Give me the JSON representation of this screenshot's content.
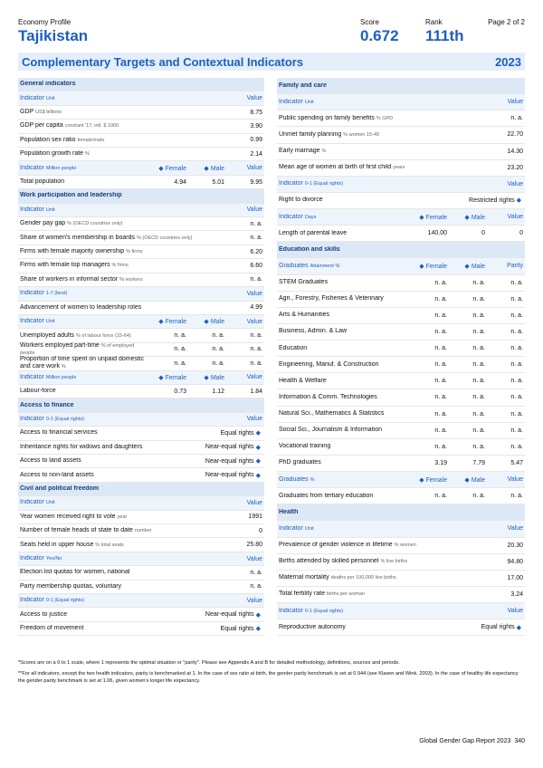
{
  "header": {
    "kind": "Economy Profile",
    "economy": "Tajikistan",
    "score_label": "Score",
    "score": "0.672",
    "rank_label": "Rank",
    "rank": "111th",
    "page": "Page 2 of 2"
  },
  "title": "Complementary Targets and Contextual Indicators",
  "year": "2023",
  "left": [
    {
      "section": "General indicators"
    },
    {
      "head": [
        "Indicator",
        "Unit",
        "Value"
      ]
    },
    {
      "label": "GDP",
      "unit": "US$ billions",
      "values": [
        "8.75"
      ]
    },
    {
      "label": "GDP per capita",
      "unit": "constant '17, intl. $ 1000",
      "values": [
        "3.90"
      ]
    },
    {
      "label": "Population sex ratio",
      "unit": "female/male",
      "values": [
        "0.99"
      ]
    },
    {
      "label": "Population growth rate",
      "unit": "%",
      "values": [
        "2.14"
      ]
    },
    {
      "head": [
        "Indicator",
        "Million people",
        "Female",
        "Male",
        "Value"
      ]
    },
    {
      "label": "Total population",
      "values": [
        "4.94",
        "5.01",
        "9.95"
      ]
    },
    {
      "section": "Work participation and leadership"
    },
    {
      "head": [
        "Indicator",
        "Unit",
        "Value"
      ]
    },
    {
      "label": "Gender pay gap",
      "unit": "% (OECD countries only)",
      "values": [
        "n. a."
      ]
    },
    {
      "label": "Share of women's membership in boards",
      "unit": "% (OECD countries only)",
      "values": [
        "n. a."
      ]
    },
    {
      "label": "Firms with female majority ownership",
      "unit": "% firms",
      "values": [
        "6.20"
      ]
    },
    {
      "label": "Firms with female top managers",
      "unit": "% firms",
      "values": [
        "6.60"
      ]
    },
    {
      "label": "Share of workers in informal sector",
      "unit": "% workers",
      "values": [
        "n. a."
      ]
    },
    {
      "head": [
        "Indicator",
        "1-7 (best)",
        "Value"
      ]
    },
    {
      "label": "Advancement of women to leadership roles",
      "values": [
        "4.99"
      ]
    },
    {
      "head": [
        "Indicator",
        "Unit",
        "Female",
        "Male",
        "Value"
      ]
    },
    {
      "label": "Unemployed adults",
      "unit": "% of labour force (15-64)",
      "values": [
        "n. a.",
        "n. a.",
        "n. a."
      ]
    },
    {
      "label": "Workers employed part-time",
      "unit": "% of employed people",
      "values": [
        "n. a.",
        "n. a.",
        "n. a."
      ]
    },
    {
      "label": "Proportion of time spent on unpaid domestic and care work",
      "unit": "%",
      "values": [
        "n. a.",
        "n. a.",
        "n. a."
      ]
    },
    {
      "head": [
        "Indicator",
        "Million people",
        "Female",
        "Male",
        "Value"
      ]
    },
    {
      "label": "Labour-force",
      "values": [
        "0.73",
        "1.12",
        "1.84"
      ]
    },
    {
      "section": "Access to finance"
    },
    {
      "head": [
        "Indicator",
        "0-1 (Equal rights)",
        "Value"
      ]
    },
    {
      "label": "Access to financial services",
      "values": [
        "Equal rights"
      ],
      "icon": true
    },
    {
      "label": "Inheritance rights for widows and daughters",
      "values": [
        "Near-equal rights"
      ],
      "icon": true
    },
    {
      "label": "Access to land assets",
      "values": [
        "Near-equal rights"
      ],
      "icon": true
    },
    {
      "label": "Access to non-land assets",
      "values": [
        "Near-equal rights"
      ],
      "icon": true
    },
    {
      "section": "Civil and political freedom"
    },
    {
      "head": [
        "Indicator",
        "Unit",
        "Value"
      ]
    },
    {
      "label": "Year women received right to vote",
      "unit": "year",
      "values": [
        "1991"
      ]
    },
    {
      "label": "Number of female heads of state to date",
      "unit": "number",
      "values": [
        "0"
      ]
    },
    {
      "label": "Seats held in upper house",
      "unit": "% total seats",
      "values": [
        "25.80"
      ]
    },
    {
      "head": [
        "Indicator",
        "Yes/No",
        "Value"
      ]
    },
    {
      "label": "Election list quotas for women, national",
      "values": [
        "n. a."
      ]
    },
    {
      "label": "Party membership quotas, voluntary",
      "values": [
        "n. a."
      ]
    },
    {
      "head": [
        "Indicator",
        "0-1 (Equal rights)",
        "Value"
      ]
    },
    {
      "label": "Access to justice",
      "values": [
        "Near-equal rights"
      ],
      "icon": true
    },
    {
      "label": "Freedom of movement",
      "values": [
        "Equal rights"
      ],
      "icon": true
    }
  ],
  "right": [
    {
      "section": "Family and care"
    },
    {
      "head": [
        "Indicator",
        "Unit",
        "Value"
      ]
    },
    {
      "label": "Public spending on family benefits",
      "unit": "% GPD",
      "values": [
        "n. a."
      ]
    },
    {
      "label": "Unmet family planning",
      "unit": "% women 15-49",
      "values": [
        "22.70"
      ]
    },
    {
      "label": "Early marriage",
      "unit": "%",
      "values": [
        "14.30"
      ]
    },
    {
      "label": "Mean age of women at birth of first child",
      "unit": "years",
      "values": [
        "23.20"
      ]
    },
    {
      "head": [
        "Indicator",
        "0-1 (Equal rights)",
        "Value"
      ]
    },
    {
      "label": "Right to divorce",
      "values": [
        "Restricted rights"
      ],
      "icon": true
    },
    {
      "head": [
        "Indicator",
        "Days",
        "Female",
        "Male",
        "Value"
      ]
    },
    {
      "label": "Length of parental leave",
      "values": [
        "140.00",
        "0",
        "0"
      ]
    },
    {
      "section": "Education and skills"
    },
    {
      "head": [
        "Graduates",
        "Attainment %",
        "Female",
        "Male",
        "Parity"
      ]
    },
    {
      "label": "STEM Graduates",
      "values": [
        "n. a.",
        "n. a.",
        "n. a."
      ]
    },
    {
      "label": "Agri., Forestry, Fisheries & Veterinary",
      "values": [
        "n. a.",
        "n. a.",
        "n. a."
      ]
    },
    {
      "label": "Arts & Humanities",
      "values": [
        "n. a.",
        "n. a.",
        "n. a."
      ]
    },
    {
      "label": "Business, Admin. & Law",
      "values": [
        "n. a.",
        "n. a.",
        "n. a."
      ]
    },
    {
      "label": "Education",
      "values": [
        "n. a.",
        "n. a.",
        "n. a."
      ]
    },
    {
      "label": "Engineering, Manuf. & Construction",
      "values": [
        "n. a.",
        "n. a.",
        "n. a."
      ]
    },
    {
      "label": "Health & Welfare",
      "values": [
        "n. a.",
        "n. a.",
        "n. a."
      ]
    },
    {
      "label": "Information & Comm. Technologies",
      "values": [
        "n. a.",
        "n. a.",
        "n. a."
      ]
    },
    {
      "label": "Natural Sci., Mathematics & Statistics",
      "values": [
        "n. a.",
        "n. a.",
        "n. a."
      ]
    },
    {
      "label": "Social Sci., Journalism & Information",
      "values": [
        "n. a.",
        "n. a.",
        "n. a."
      ]
    },
    {
      "label": "Vocational training",
      "values": [
        "n. a.",
        "n. a.",
        "n. a."
      ]
    },
    {
      "label": "PhD graduates",
      "values": [
        "3.19",
        "7.79",
        "5.47"
      ]
    },
    {
      "head": [
        "Graduates",
        "%",
        "Female",
        "Male",
        "Value"
      ]
    },
    {
      "label": "Graduates from tertiary education",
      "values": [
        "n. a.",
        "n. a.",
        "n. a."
      ]
    },
    {
      "section": "Health"
    },
    {
      "head": [
        "Indicator",
        "Unit",
        "Value"
      ]
    },
    {
      "label": "Prevalence of gender violence in lifetime",
      "unit": "% women",
      "values": [
        "20.30"
      ]
    },
    {
      "label": "Births attended by skilled personnel",
      "unit": "% live births",
      "values": [
        "94.80"
      ]
    },
    {
      "label": "Maternal mortality",
      "unit": "deaths per 100,000 live births",
      "values": [
        "17.00"
      ]
    },
    {
      "label": "Total fertility rate",
      "unit": "births per woman",
      "values": [
        "3.24"
      ]
    },
    {
      "head": [
        "Indicator",
        "0-1 (Equal rights)",
        "Value"
      ]
    },
    {
      "label": "Reproductive autonomy",
      "values": [
        "Equal rights"
      ],
      "icon": true
    }
  ],
  "notes": [
    "*Scores are on a 0 to 1 scale, where 1 represents the optimal situation or \"parity\". Please see Appendix A and B for detailed methodology, definitions, sources and periods.",
    "**For all indicators, except the two health indicators, parity is benchmarked at 1. In the case of sex ratio at birth, the gender parity benchmark is set at 0.944 (see Klasen and Wink, 2003). In the case of healthy life expectancy the gender parity benchmark is set at 1.06, given women's longer life expectancy."
  ],
  "footer": {
    "text": "Global Gender Gap Report 2023",
    "page": "340"
  }
}
